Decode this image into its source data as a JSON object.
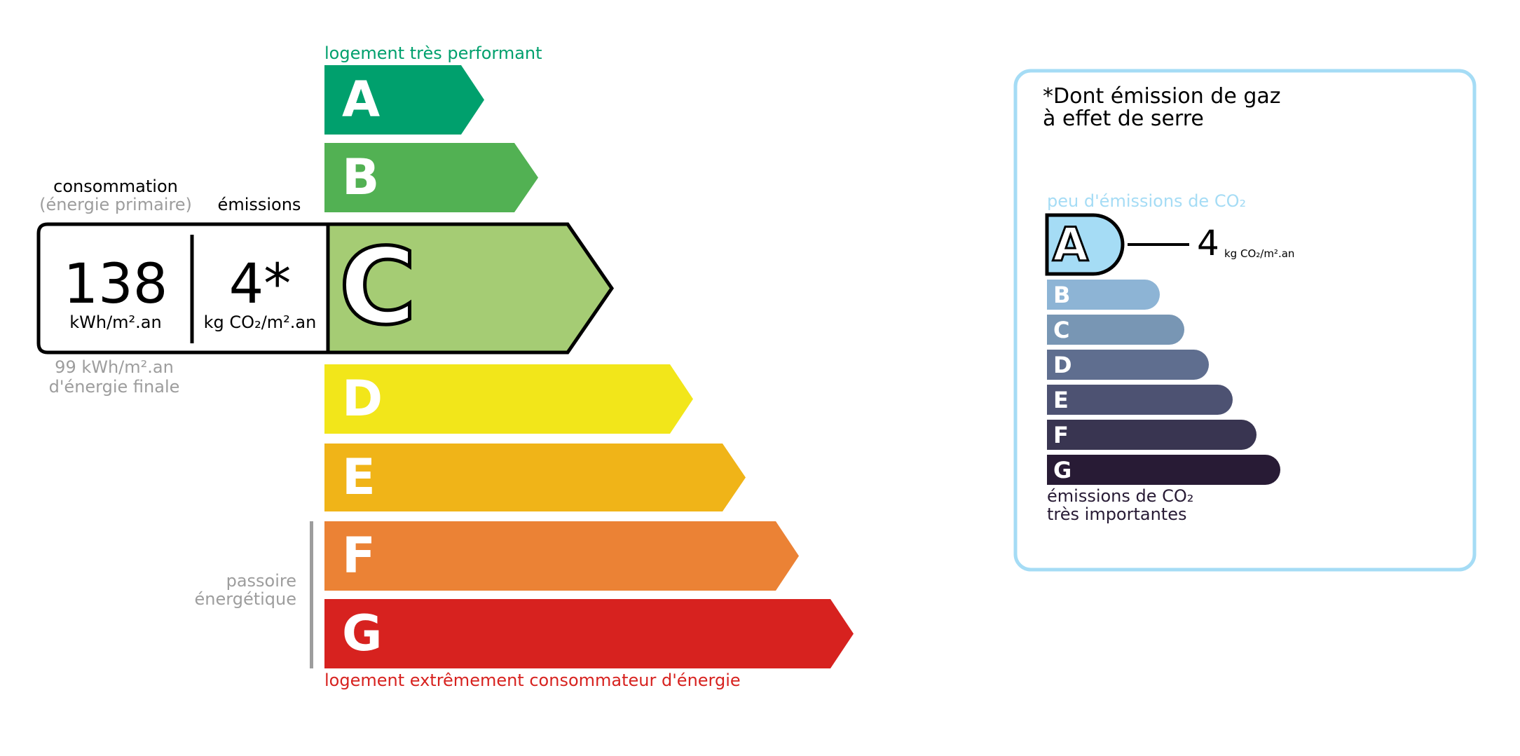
{
  "energy": {
    "top_label": "logement très performant",
    "bottom_label": "logement extrêmement consommateur d'énergie",
    "passoire_label": [
      "passoire",
      "énergétique"
    ],
    "classes": [
      {
        "letter": "A",
        "color": "#00a06d"
      },
      {
        "letter": "B",
        "color": "#52b153"
      },
      {
        "letter": "C",
        "color": "#a5cc74"
      },
      {
        "letter": "D",
        "color": "#f2e61a"
      },
      {
        "letter": "E",
        "color": "#f0b418"
      },
      {
        "letter": "F",
        "color": "#eb8235"
      },
      {
        "letter": "G",
        "color": "#d7221f"
      }
    ],
    "current_class": "C",
    "consumption_label": "consommation",
    "consumption_sublabel": "(énergie primaire)",
    "emissions_label": "émissions",
    "consumption_value": "138",
    "consumption_unit": "kWh/m².an",
    "emissions_value": "4*",
    "emissions_unit": "kg CO₂/m².an",
    "final_energy_value": "99 kWh/m².an",
    "final_energy_label": "d'énergie finale",
    "top_color": "#00a06d",
    "bottom_color": "#d7221f"
  },
  "ges": {
    "title_line1": "*Dont émission de gaz",
    "title_line2": "à effet de serre",
    "top_label": "peu d'émissions de CO₂",
    "bottom_label_line1": "émissions de CO₂",
    "bottom_label_line2": "très importantes",
    "current_class": "A",
    "value": "4",
    "unit": "kg CO₂/m².an",
    "border_color": "#a5dcf5",
    "classes": [
      {
        "letter": "A",
        "color": "#a5dcf5"
      },
      {
        "letter": "B",
        "color": "#8db4d5"
      },
      {
        "letter": "C",
        "color": "#7896b4"
      },
      {
        "letter": "D",
        "color": "#5f6e8f"
      },
      {
        "letter": "E",
        "color": "#4d5272"
      },
      {
        "letter": "F",
        "color": "#393551"
      },
      {
        "letter": "G",
        "color": "#281b35"
      }
    ]
  }
}
